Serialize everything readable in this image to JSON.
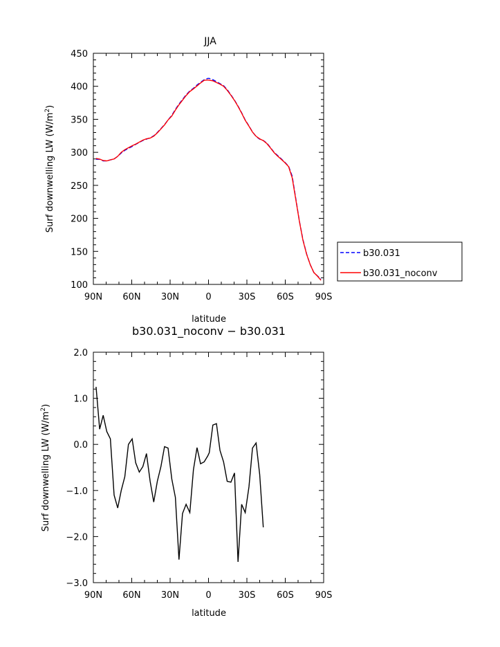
{
  "chart_data": [
    {
      "type": "line",
      "title": "JJA",
      "xlabel": "latitude",
      "ylabel": "Surf downwelling LW (W/m",
      "ylabel_sup": "2",
      "ylabel_end": ")",
      "xlim": [
        90,
        -90
      ],
      "ylim": [
        100,
        450
      ],
      "xticks": [
        90,
        60,
        30,
        0,
        -30,
        -60,
        -90
      ],
      "xtick_labels": [
        "90N",
        "60N",
        "30N",
        "0",
        "30S",
        "60S",
        "90S"
      ],
      "yticks": [
        100,
        150,
        200,
        250,
        300,
        350,
        400,
        450
      ],
      "ytick_labels": [
        "100",
        "150",
        "200",
        "250",
        "300",
        "350",
        "400",
        "450"
      ],
      "legend": "outside-right",
      "colors": {
        "b30.031": "#0000ff",
        "b30.031_noconv": "#ff0000"
      },
      "series": [
        {
          "name": "b30.031",
          "style": "dashed",
          "x": [
            87.9,
            85.1,
            82.3,
            79.5,
            76.7,
            73.8,
            71.0,
            68.2,
            65.4,
            62.6,
            59.7,
            56.9,
            54.1,
            51.3,
            48.5,
            45.6,
            42.8,
            40.0,
            37.2,
            34.4,
            31.6,
            28.7,
            25.9,
            23.1,
            20.3,
            17.5,
            14.6,
            11.8,
            9.0,
            6.2,
            3.4,
            0.6,
            -0.6,
            -3.4,
            -6.2,
            -9.0,
            -11.8,
            -14.6,
            -17.5,
            -20.3,
            -23.1,
            -25.9,
            -28.7,
            -31.6,
            -34.4,
            -37.2,
            -40.0,
            -42.8,
            -45.6,
            -48.5,
            -51.3,
            -54.1,
            -56.9,
            -59.7,
            -62.6,
            -65.4,
            -68.2,
            -71.0,
            -73.8,
            -76.7,
            -79.5,
            -82.3,
            -85.1,
            -87.9
          ],
          "y": [
            289.5,
            289.5,
            287,
            287,
            288.5,
            290,
            294,
            299,
            303,
            306,
            309,
            312,
            315,
            318,
            320,
            322,
            325,
            330,
            336,
            342,
            349,
            356,
            365,
            373,
            380,
            387,
            393,
            397,
            402,
            406,
            410,
            412,
            412,
            410,
            407,
            404,
            401,
            395,
            387,
            379,
            370,
            360,
            349,
            340,
            331,
            324,
            320,
            318,
            314,
            307,
            300,
            295,
            290,
            285,
            279,
            264,
            230,
            196,
            168,
            146,
            130,
            118,
            113,
            108
          ]
        },
        {
          "name": "b30.031_noconv",
          "style": "solid",
          "x": [
            87.9,
            85.1,
            82.3,
            79.5,
            76.7,
            73.8,
            71.0,
            68.2,
            65.4,
            62.6,
            59.7,
            56.9,
            54.1,
            51.3,
            48.5,
            45.6,
            42.8,
            40.0,
            37.2,
            34.4,
            31.6,
            28.7,
            25.9,
            23.1,
            20.3,
            17.5,
            14.6,
            11.8,
            9.0,
            6.2,
            3.4,
            0.6,
            -0.6,
            -3.4,
            -6.2,
            -9.0,
            -11.8,
            -14.6,
            -17.5,
            -20.3,
            -23.1,
            -25.9,
            -28.7,
            -31.6,
            -34.4,
            -37.2,
            -40.0,
            -42.8,
            -45.6,
            -48.5,
            -51.3,
            -54.1,
            -56.9,
            -59.7,
            -62.6,
            -65.4,
            -68.2,
            -71.0,
            -73.8,
            -76.7,
            -79.5,
            -82.3,
            -85.1,
            -87.9
          ],
          "y": [
            290.8,
            289.8,
            287.6,
            287.1,
            288.6,
            290,
            294,
            300,
            304,
            307,
            310,
            312.5,
            315.5,
            318.5,
            320.5,
            321.5,
            324.5,
            329.5,
            335.5,
            341.5,
            349,
            355,
            364,
            372,
            379,
            386,
            392,
            396,
            400.5,
            405,
            409,
            409.5,
            409.2,
            408.3,
            405.8,
            403.3,
            400,
            394,
            386.5,
            378.5,
            369.5,
            359.5,
            348.5,
            339.5,
            330.6,
            324.4,
            320.5,
            317.8,
            313.2,
            306.5,
            299.5,
            294.2,
            289.4,
            284.4,
            278.4,
            261.5,
            228.8,
            195.6,
            167.1,
            145.5,
            130,
            118,
            112.7,
            106.2
          ]
        }
      ]
    },
    {
      "type": "line",
      "title": "b30.031_noconv − b30.031",
      "xlabel": "latitude",
      "ylabel": "Surf downwelling LW (W/m",
      "ylabel_sup": "2",
      "ylabel_end": ")",
      "xlim": [
        90,
        -90
      ],
      "ylim": [
        -3.0,
        2.0
      ],
      "xticks": [
        90,
        60,
        30,
        0,
        -30,
        -60,
        -90
      ],
      "xtick_labels": [
        "90N",
        "60N",
        "30N",
        "0",
        "30S",
        "60S",
        "90S"
      ],
      "yticks": [
        -3.0,
        -2.0,
        -1.0,
        0.0,
        1.0,
        2.0
      ],
      "ytick_labels": [
        "−3.0",
        "−2.0",
        "−1.0",
        "0.0",
        "1.0",
        "2.0"
      ],
      "colors": {
        "line": "#000000"
      },
      "series": [
        {
          "x": [
            87.9,
            85.1,
            82.3,
            79.5,
            76.7,
            73.8,
            71.0,
            68.2,
            65.4,
            62.6,
            59.7,
            56.9,
            54.1,
            51.3,
            48.5,
            45.6,
            42.8,
            40.0,
            37.2,
            34.4,
            31.6,
            28.7,
            25.9,
            23.1,
            20.3,
            17.5,
            14.6,
            11.8,
            9.0,
            6.2,
            3.4,
            0.6,
            -0.6,
            -3.4,
            -6.2,
            -9.0,
            -11.8,
            -14.6,
            -17.5,
            -20.3,
            -23.1,
            -25.9,
            -28.7,
            -31.6,
            -34.4,
            -37.2,
            -40.0,
            -42.8,
            -45.6,
            -48.5,
            -51.3,
            -54.1,
            -56.9,
            -59.7,
            -62.6,
            -65.4,
            -68.2,
            -71.0,
            -73.8,
            -76.7,
            -79.5,
            -82.3,
            -85.1,
            -87.9
          ],
          "y": [
            1.25,
            0.33,
            0.63,
            0.28,
            0.12,
            -1.1,
            -1.38,
            -1.0,
            -0.7,
            0.0,
            0.12,
            -0.4,
            -0.6,
            -0.48,
            -0.2,
            -0.8,
            -1.25,
            -0.8,
            -0.48,
            -0.05,
            -0.08,
            -0.75,
            -1.15,
            -2.5,
            -1.5,
            -1.3,
            -1.48,
            -0.55,
            -0.07,
            -0.42,
            -0.38,
            -0.25,
            -0.18,
            0.42,
            0.45,
            -0.13,
            -0.38,
            -0.8,
            -0.82,
            -0.62,
            -2.55,
            -1.3,
            -1.48,
            -0.92,
            -0.08,
            0.03,
            -0.65,
            -1.8,
            null,
            null,
            null,
            null,
            null,
            null,
            null,
            null,
            null,
            null,
            null,
            null,
            null,
            null,
            null,
            null
          ]
        }
      ]
    }
  ]
}
